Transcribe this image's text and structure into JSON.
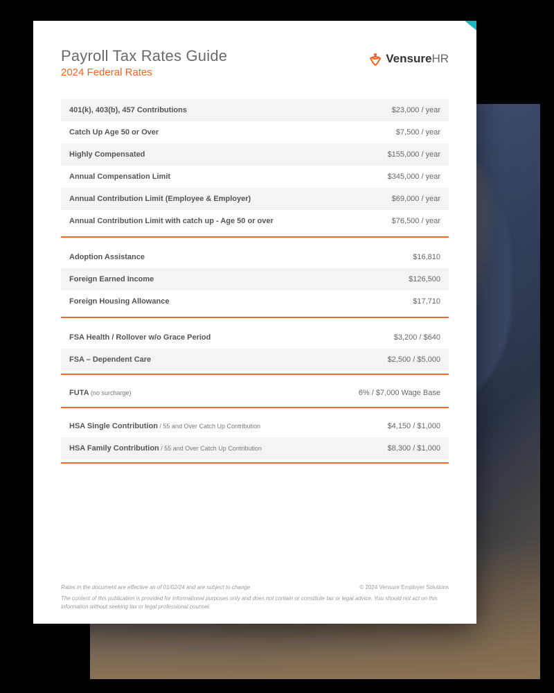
{
  "colors": {
    "accent": "#f26522",
    "teal": "#1fb6c4",
    "text_muted": "#6a6a6a",
    "row_shade": "#f4f4f4",
    "page_bg": "#ffffff",
    "backdrop": "#000000"
  },
  "header": {
    "title": "Payroll Tax Rates Guide",
    "subtitle": "2024 Federal Rates",
    "logo_text_main": "Vensure",
    "logo_text_suffix": "HR"
  },
  "sections": [
    {
      "rows": [
        {
          "label": "401(k), 403(b), 457 Contributions",
          "sub": "",
          "value": "$23,000 / year",
          "shade": true
        },
        {
          "label": "Catch Up Age 50 or Over",
          "sub": "",
          "value": "$7,500 / year",
          "shade": false
        },
        {
          "label": "Highly Compensated",
          "sub": "",
          "value": "$155,000 / year",
          "shade": true
        },
        {
          "label": "Annual Compensation Limit",
          "sub": "",
          "value": "$345,000 / year",
          "shade": false
        },
        {
          "label": "Annual Contribution Limit (Employee & Employer)",
          "sub": "",
          "value": "$69,000 / year",
          "shade": true
        },
        {
          "label": "Annual Contribution Limit with catch up - Age 50 or over",
          "sub": "",
          "value": "$76,500 / year",
          "shade": false
        }
      ]
    },
    {
      "rows": [
        {
          "label": "Adoption Assistance",
          "sub": "",
          "value": "$16,810",
          "shade": false
        },
        {
          "label": "Foreign Earned Income",
          "sub": "",
          "value": "$126,500",
          "shade": true
        },
        {
          "label": "Foreign Housing Allowance",
          "sub": "",
          "value": "$17,710",
          "shade": false
        }
      ]
    },
    {
      "rows": [
        {
          "label": "FSA Health / Rollover w/o Grace Period",
          "sub": "",
          "value": "$3,200 / $640",
          "shade": false
        },
        {
          "label": "FSA – Dependent Care",
          "sub": "",
          "value": "$2,500 / $5,000",
          "shade": true
        }
      ]
    },
    {
      "rows": [
        {
          "label": "FUTA",
          "sub": " (no surcharge)",
          "value": "6% / $7,000 Wage Base",
          "shade": false
        }
      ]
    },
    {
      "rows": [
        {
          "label": "HSA Single Contribution",
          "sub": " / 55 and Over Catch Up Contribution",
          "value": "$4,150 / $1,000",
          "shade": false
        },
        {
          "label": "HSA Family Contribution",
          "sub": " / 55 and Over Catch Up Contribution",
          "value": "$8,300 / $1,000",
          "shade": true
        }
      ]
    }
  ],
  "footer": {
    "effective": "Rates in the document are effective as of 01/02/24 and are subject to change.",
    "copyright": "© 2024 Vensure Employer Solutions",
    "disclaimer": "The content of this publication is provided for informational purposes only and does not contain or constitute tax or legal advice. You should not act on this information without seeking tax or legal professional counsel."
  }
}
